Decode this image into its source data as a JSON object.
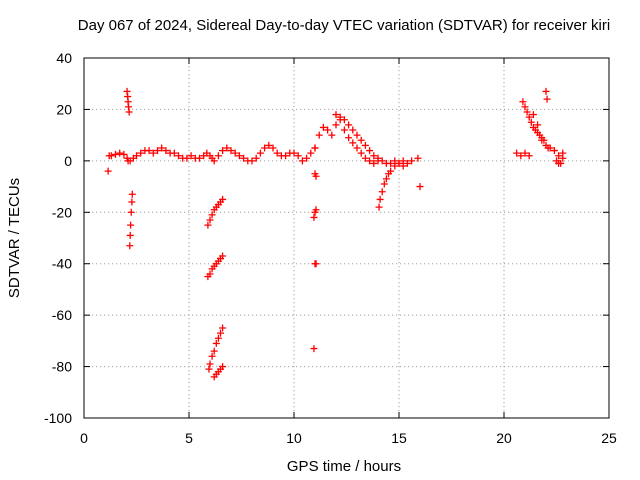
{
  "chart_data": {
    "type": "scatter",
    "title": "Day 067 of 2024, Sidereal Day-to-day VTEC variation (SDTVAR) for receiver kiri",
    "xlabel": "GPS time / hours",
    "ylabel": "SDTVAR / TECUs",
    "xlim": [
      0,
      25
    ],
    "ylim": [
      -100,
      40
    ],
    "xticks": [
      0,
      5,
      10,
      15,
      20,
      25
    ],
    "yticks": [
      -100,
      -80,
      -60,
      -40,
      -20,
      0,
      20,
      40
    ],
    "xtick_labels": [
      "0",
      "5",
      "10",
      "15",
      "20",
      "25"
    ],
    "ytick_labels": [
      "-100",
      "-80",
      "-60",
      "-40",
      "-20",
      "0",
      "20",
      "40"
    ],
    "grid": true,
    "marker": "plus",
    "color": "#ff0000",
    "series": [
      {
        "x": [
          1.2,
          1.3,
          1.5,
          1.7,
          1.9,
          2.05,
          2.1,
          2.2,
          2.35,
          2.5,
          2.7,
          2.9,
          3.1,
          3.3,
          3.5,
          3.7,
          3.9,
          4.1,
          4.3,
          4.5,
          4.7,
          4.9,
          5.1,
          5.3,
          5.5,
          5.7,
          5.85,
          6.0,
          6.1,
          6.2,
          6.4,
          6.6,
          6.8,
          7.0,
          7.2,
          7.4,
          7.6,
          7.8,
          8.0,
          8.2,
          8.4,
          8.6,
          8.8,
          9.0,
          9.2,
          9.4,
          9.6,
          9.8,
          10.0,
          10.2,
          10.4,
          10.6,
          10.8,
          11.0,
          11.2,
          11.4,
          11.6,
          11.8,
          12.0,
          12.2,
          12.4,
          12.6,
          12.8,
          13.0,
          13.2,
          13.4,
          13.6,
          13.8,
          14.0,
          14.2,
          14.4,
          14.6,
          14.8,
          15.0,
          15.2,
          15.4,
          15.6,
          15.9,
          16.0,
          20.6,
          20.8,
          21.0,
          21.2,
          21.4,
          21.6,
          21.8,
          22.0,
          22.2,
          22.4,
          22.6,
          22.8
        ],
        "y": [
          2,
          2,
          2.5,
          3,
          2.5,
          1,
          0,
          0,
          1,
          2,
          3,
          4,
          4,
          3,
          4,
          5,
          4,
          3,
          3,
          2,
          1,
          1,
          2,
          1,
          1,
          2,
          3,
          2,
          1,
          0,
          2,
          4,
          5,
          4,
          3,
          2,
          1,
          0,
          0,
          1,
          3,
          5,
          6,
          5,
          3,
          2,
          2,
          3,
          3,
          2,
          0,
          1,
          3,
          5,
          10,
          13,
          12,
          10,
          14,
          16,
          12,
          9,
          7,
          5,
          3,
          1,
          0,
          -1,
          1,
          0,
          -1,
          -1,
          0,
          -1,
          -2,
          -1,
          0,
          1,
          -10,
          3,
          2,
          3,
          2,
          18,
          14,
          8,
          6,
          5,
          4,
          2,
          1
        ]
      },
      {
        "x": [
          1.15,
          2.05,
          2.08,
          2.1,
          2.12,
          2.15,
          2.18,
          2.2,
          2.22,
          2.25,
          2.28,
          2.3
        ],
        "y": [
          -4,
          27,
          25,
          23,
          21,
          19,
          -33,
          -29,
          -25,
          -20,
          -16,
          -13
        ]
      },
      {
        "x": [
          5.9,
          6.0,
          6.1,
          6.2,
          6.3,
          6.4,
          6.5,
          6.6,
          5.9,
          6.0,
          6.1,
          6.2,
          6.3,
          6.4,
          6.5,
          6.6,
          5.95,
          6.0,
          6.1,
          6.2,
          6.3,
          6.4,
          6.5,
          6.6,
          6.2,
          6.3,
          6.4,
          6.5,
          6.6
        ],
        "y": [
          -25,
          -23,
          -21,
          -19,
          -18,
          -17,
          -16,
          -15,
          -45,
          -44,
          -42,
          -41,
          -40,
          -39,
          -38,
          -37,
          -81,
          -79,
          -76,
          -74,
          -71,
          -69,
          -67,
          -65,
          -84,
          -83,
          -82,
          -81,
          -80
        ]
      },
      {
        "x": [
          10.95,
          11.0,
          11.05,
          11.0,
          11.05,
          10.95,
          11.0,
          11.05,
          11.0
        ],
        "y": [
          -22,
          -20,
          -19,
          -40,
          -40,
          -73,
          -5,
          -6,
          5
        ]
      },
      {
        "x": [
          12.0,
          12.2,
          12.4,
          12.6,
          12.8,
          13.0,
          13.2,
          13.4,
          13.6,
          13.8,
          14.0,
          14.05,
          14.1,
          14.2,
          14.3,
          14.4,
          14.5,
          14.6,
          14.8,
          15.0,
          15.2
        ],
        "y": [
          18,
          17,
          16,
          14,
          12,
          10,
          8,
          6,
          4,
          2,
          0,
          -18,
          -15,
          -12,
          -9,
          -7,
          -5,
          -4,
          -2,
          -1,
          0
        ]
      },
      {
        "x": [
          20.9,
          21.0,
          21.1,
          21.2,
          21.3,
          21.4,
          21.5,
          21.6,
          21.7,
          21.8,
          21.9,
          22.0,
          22.05,
          22.1,
          22.5,
          22.6,
          22.7,
          22.8
        ],
        "y": [
          23,
          21,
          19,
          17,
          15,
          13,
          12,
          11,
          10,
          9,
          8,
          27,
          24,
          5,
          0,
          -1,
          -1,
          3
        ]
      }
    ]
  }
}
